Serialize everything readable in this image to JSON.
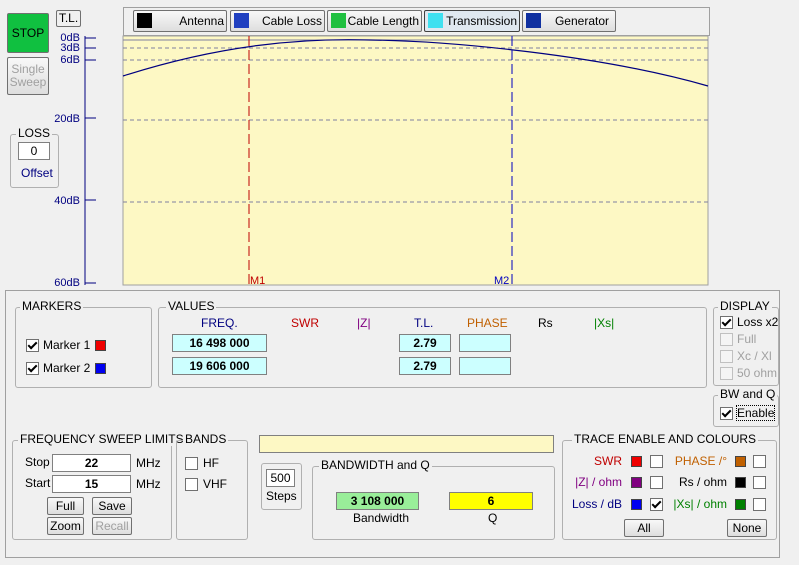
{
  "stop": "STOP",
  "single_sweep": "Single Sweep",
  "tl_button": "T.L.",
  "tabs": [
    "Antenna",
    "Cable Loss",
    "Cable Length",
    "Transmission",
    "Generator"
  ],
  "scale_labels": [
    "0dB",
    "3dB",
    "6dB",
    "20dB",
    "40dB",
    "60dB"
  ],
  "plot_markers": [
    "M1",
    "M2"
  ],
  "loss": {
    "title": "LOSS",
    "value": "0",
    "label": "Offset"
  },
  "markers": {
    "title": "MARKERS",
    "items": [
      "Marker 1",
      "Marker 2"
    ]
  },
  "values": {
    "title": "VALUES",
    "headers": [
      "FREQ.",
      "SWR",
      "|Z|",
      "T.L.",
      "PHASE",
      "Rs",
      "|Xs|"
    ],
    "rows": [
      [
        "16 498 000",
        "2.79"
      ],
      [
        "19 606 000",
        "2.79"
      ]
    ]
  },
  "display": {
    "title": "DISPLAY",
    "options": [
      "Loss x2",
      "Full",
      "Xc / Xl",
      "50 ohm"
    ]
  },
  "bwq": {
    "title": "BW and Q",
    "option": "Enable"
  },
  "sweep": {
    "title": "FREQUENCY SWEEP LIMITS",
    "stop_label": "Stop",
    "stop_value": "22",
    "start_label": "Start",
    "start_value": "15",
    "unit": "MHz",
    "buttons": [
      "Full",
      "Save",
      "Zoom",
      "Recall"
    ]
  },
  "bands": {
    "title": "BANDS",
    "options": [
      "HF",
      "VHF"
    ]
  },
  "steps": {
    "value": "500",
    "label": "Steps"
  },
  "bandwidth_q": {
    "title": "BANDWIDTH and Q",
    "bandwidth": "3 108 000",
    "bandwidth_label": "Bandwidth",
    "q": "6",
    "q_label": "Q"
  },
  "trace": {
    "title": "TRACE ENABLE AND COLOURS",
    "items": [
      "SWR",
      "|Z| / ohm",
      "Loss / dB",
      "PHASE /°",
      "Rs / ohm",
      "|Xs| / ohm"
    ],
    "buttons": [
      "All",
      "None"
    ]
  }
}
